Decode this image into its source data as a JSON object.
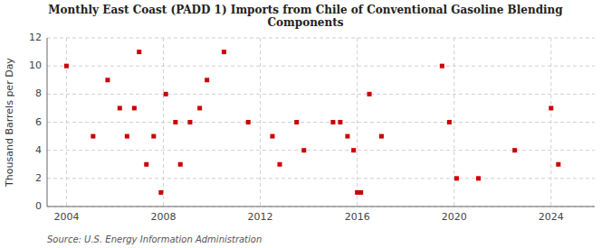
{
  "chart_data": {
    "type": "scatter",
    "title": "Monthly East Coast (PADD 1) Imports from Chile of Conventional Gasoline Blending\nComponents",
    "ylabel": "Thousand Barrels per Day",
    "annotations": [
      "Source: U.S. Energy Information Administration"
    ],
    "color": "#cc0000",
    "marker": "square",
    "grid": true,
    "xlim": [
      2003.2,
      2025.8
    ],
    "xticks": [
      2004,
      2008,
      2012,
      2016,
      2020,
      2024
    ],
    "ylim": [
      0,
      12
    ],
    "yticks": [
      0,
      2,
      4,
      6,
      8,
      10,
      12
    ],
    "x": [
      2004.0,
      2005.1,
      2005.7,
      2006.2,
      2006.5,
      2006.8,
      2007.0,
      2007.3,
      2007.6,
      2007.9,
      2008.1,
      2008.5,
      2008.7,
      2009.1,
      2009.5,
      2009.8,
      2010.5,
      2011.5,
      2012.5,
      2012.8,
      2013.5,
      2013.8,
      2015.0,
      2015.3,
      2015.6,
      2015.85,
      2016.0,
      2016.15,
      2016.5,
      2017.0,
      2019.5,
      2019.8,
      2020.1,
      2021.0,
      2022.5,
      2024.0,
      2024.3
    ],
    "values": [
      10,
      5,
      9,
      7,
      5,
      7,
      11,
      3,
      5,
      1,
      8,
      6,
      3,
      6,
      7,
      9,
      11,
      6,
      5,
      3,
      6,
      4,
      6,
      6,
      5,
      4,
      1,
      1,
      8,
      5,
      10,
      6,
      2,
      2,
      4,
      7,
      3
    ]
  }
}
